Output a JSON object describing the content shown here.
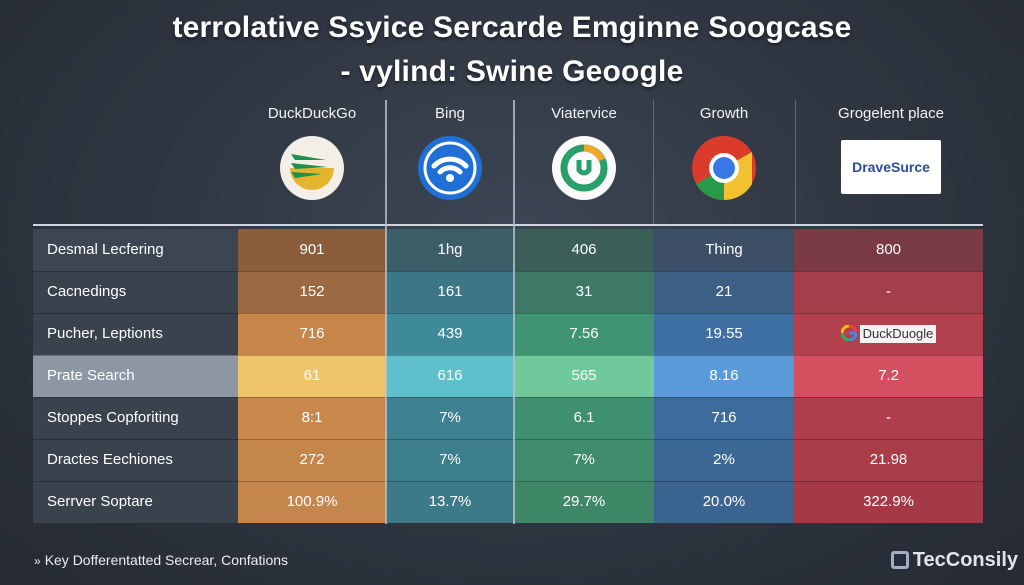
{
  "title": {
    "line1": "terrolative Ssyice Sercarde Emginne Soogcase",
    "line2": "- vylind: Swine Geoogle"
  },
  "columns": [
    {
      "label": "DuckDuckGo",
      "logo": "duckduckgo-logo"
    },
    {
      "label": "Bing",
      "logo": "bing-wifi-logo"
    },
    {
      "label": "Viatervice",
      "logo": "viatervice-logo"
    },
    {
      "label": "Growth",
      "logo": "chrome-logo"
    },
    {
      "label": "Grogelent place",
      "logo": "dravesurce-logo",
      "logo_text": "DraveSurce"
    }
  ],
  "rows": [
    {
      "label": "Desmal Lecfering",
      "values": [
        "901",
        "1hg",
        "406",
        "Thing",
        "800"
      ]
    },
    {
      "label": "Cacnedings",
      "values": [
        "152",
        "161",
        "31",
        "21",
        "-"
      ]
    },
    {
      "label": "Pucher, Leptionts",
      "values": [
        "716",
        "439",
        "7.56",
        "19.55",
        "DuckDuogle"
      ]
    },
    {
      "label": "Prate Search",
      "values": [
        "61",
        "616",
        "565",
        "8.16",
        "7.2"
      ]
    },
    {
      "label": "Stoppes Copforiting",
      "values": [
        "8:1",
        "7%",
        "6.1",
        "716",
        "-"
      ]
    },
    {
      "label": "Dractes Eechiones",
      "values": [
        "272",
        "7%",
        "7%",
        "2%",
        "21.98"
      ]
    },
    {
      "label": "Serrver Soptare",
      "values": [
        "100.9%",
        "13.7%",
        "29.7%",
        "20.0%",
        "322.9%"
      ]
    }
  ],
  "footer": "Key Dofferentatted Secrear, Confations",
  "brand": "TecConsily",
  "colors": {
    "duckduckgo": "#d08a45",
    "bing": "#3f8696",
    "viatervice": "#3f9c74",
    "growth": "#3a70a5",
    "grogelent": "#b3404d"
  }
}
